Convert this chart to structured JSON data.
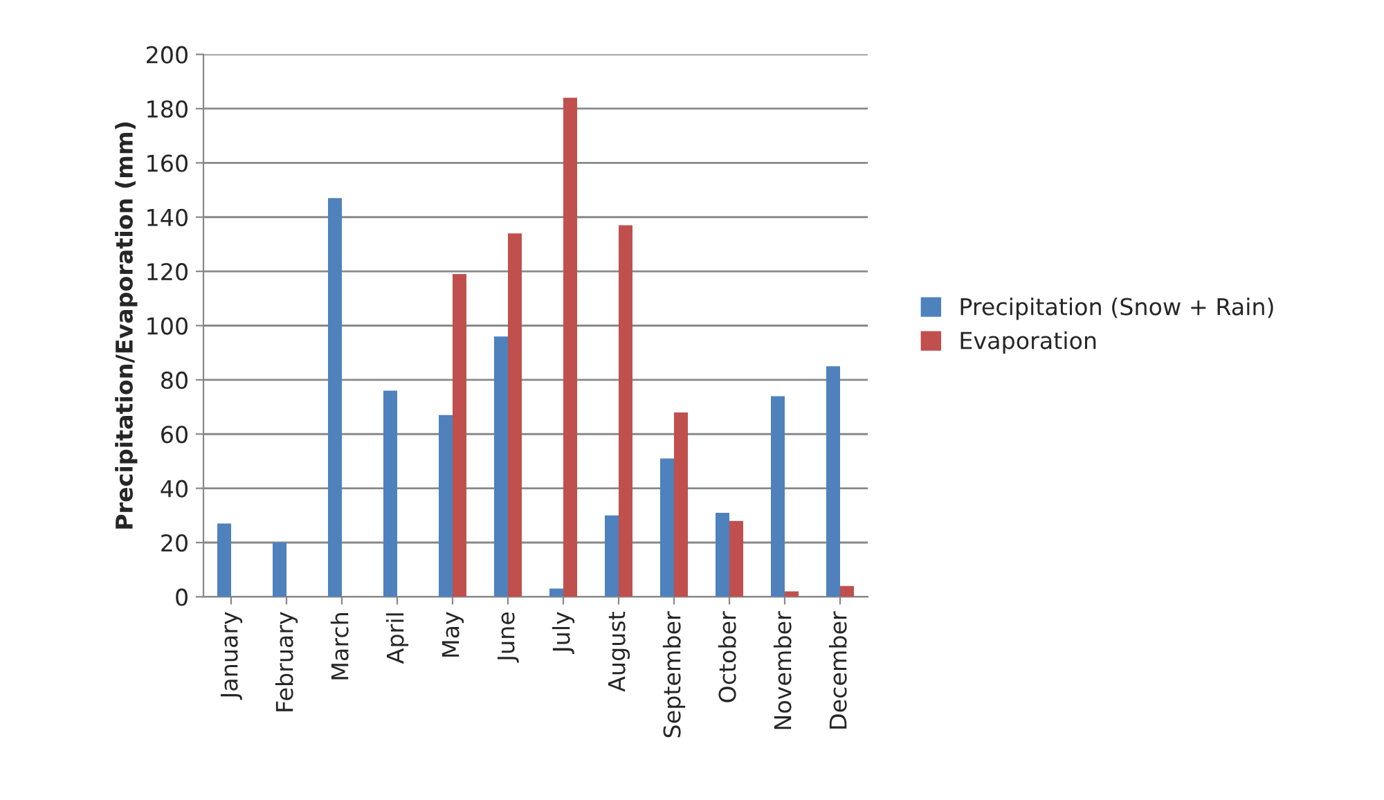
{
  "chart_data": {
    "type": "bar",
    "ylabel": "Precipitation/Evaporation (mm)",
    "categories": [
      "January",
      "February",
      "March",
      "April",
      "May",
      "June",
      "July",
      "August",
      "September",
      "October",
      "November",
      "December"
    ],
    "series": [
      {
        "name": "Precipitation (Snow + Rain)",
        "color": "#4f81bd",
        "values": [
          27,
          20,
          147,
          76,
          67,
          96,
          3,
          30,
          51,
          31,
          74,
          85
        ]
      },
      {
        "name": "Evaporation",
        "color": "#c0504d",
        "values": [
          null,
          null,
          null,
          null,
          119,
          134,
          184,
          137,
          68,
          28,
          2,
          4
        ]
      }
    ],
    "ylim": [
      0,
      200
    ],
    "yticks": [
      0,
      20,
      40,
      60,
      80,
      100,
      120,
      140,
      160,
      180,
      200
    ],
    "grid": "y",
    "legend": "right"
  }
}
